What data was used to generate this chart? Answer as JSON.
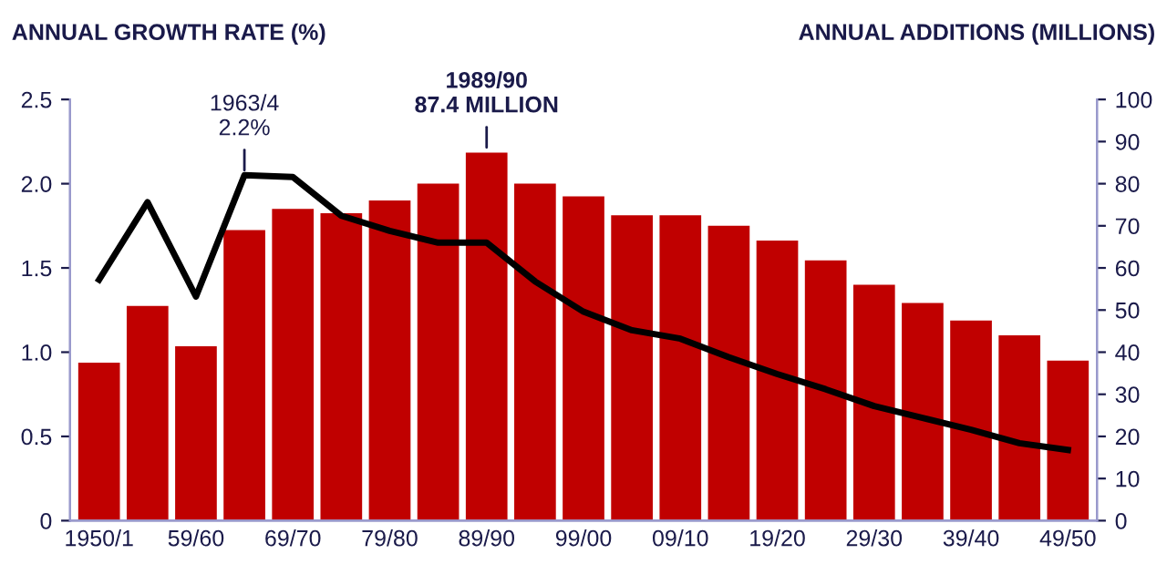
{
  "chart_data": {
    "type": "bar",
    "ylabel": "ANNUAL GROWTH RATE (%)",
    "y2label": "ANNUAL ADDITIONS (MILLIONS)",
    "categories": [
      "1950/1",
      null,
      "59/60",
      null,
      "69/70",
      null,
      "79/80",
      null,
      "89/90",
      null,
      "99/00",
      null,
      "09/10",
      null,
      "19/20",
      null,
      "29/30",
      null,
      "39/40",
      null,
      "49/50"
    ],
    "series": [
      {
        "axis": "y2",
        "color": "#c00000",
        "values": [
          37.5,
          51,
          41.4,
          69,
          74,
          73,
          76,
          80,
          87.4,
          80,
          77,
          72.5,
          72.5,
          70,
          66.5,
          61.8,
          56,
          51.7,
          47.5,
          44,
          38
        ]
      },
      {
        "type": "line",
        "axis": "y",
        "color": "#000000",
        "values": [
          1.43,
          1.89,
          1.33,
          2.05,
          2.04,
          1.81,
          1.72,
          1.65,
          1.65,
          1.42,
          1.24,
          1.13,
          1.08,
          0.97,
          0.87,
          0.78,
          0.68,
          0.61,
          0.54,
          0.46,
          0.42
        ]
      }
    ],
    "ylim": [
      0,
      2.5
    ],
    "yticks": [
      0,
      {
        "value": 0.5,
        "label": "0.5"
      },
      {
        "value": 1.0,
        "label": "1.0"
      },
      {
        "value": 1.5,
        "label": "1.5"
      },
      {
        "value": 2.0,
        "label": "2.0"
      },
      {
        "value": 2.5,
        "label": "2.5"
      }
    ],
    "y2lim": [
      0,
      100
    ],
    "y2ticks": [
      0,
      10,
      20,
      30,
      40,
      50,
      60,
      70,
      80,
      90,
      100
    ],
    "annotations": [
      "1963/4\n2.2%",
      "1989/90\n87.4 MILLION"
    ],
    "grid": false,
    "legend": false,
    "marker": "none",
    "line_style": "solid"
  }
}
